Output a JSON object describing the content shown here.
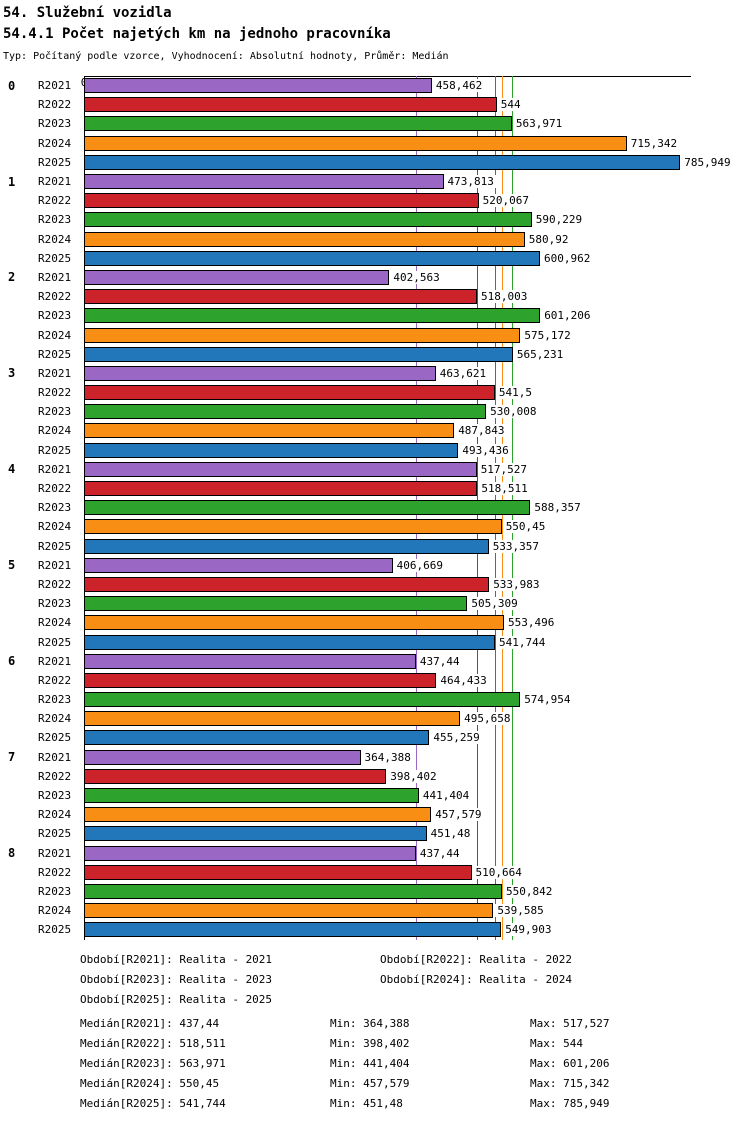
{
  "header": {
    "title": "54. Služební vozidla",
    "subtitle": "54.4.1 Počet najetých km na jednoho pracovníka",
    "meta": "Typ: Počítaný podle vzorce, Vyhodnocení: Absolutní hodnoty, Průměr: Medián"
  },
  "chart_data": {
    "type": "bar",
    "orientation": "horizontal",
    "title": "54.4.1 Počet najetých km na jednoho pracovníka",
    "xlim": [
      0,
      800
    ],
    "axis_origin_label": "0",
    "grid": false,
    "series": [
      {
        "name": "R2021",
        "label": "Realita - 2021",
        "color": "#9a67c5"
      },
      {
        "name": "R2022",
        "label": "Realita - 2022",
        "color": "#cc2229"
      },
      {
        "name": "R2023",
        "label": "Realita - 2023",
        "color": "#2da32d"
      },
      {
        "name": "R2024",
        "label": "Realita - 2024",
        "color": "#f98e15"
      },
      {
        "name": "R2025",
        "label": "Realita - 2025",
        "color": "#2277bb"
      }
    ],
    "groups": [
      {
        "label": "0",
        "values": [
          458.462,
          544,
          563.971,
          715.342,
          785.949
        ],
        "displays": [
          "458,462",
          "544",
          "563,971",
          "715,342",
          "785,949"
        ]
      },
      {
        "label": "1",
        "values": [
          473.813,
          520.067,
          590.229,
          580.92,
          600.962
        ],
        "displays": [
          "473,813",
          "520,067",
          "590,229",
          "580,92",
          "600,962"
        ]
      },
      {
        "label": "2",
        "values": [
          402.563,
          518.003,
          601.206,
          575.172,
          565.231
        ],
        "displays": [
          "402,563",
          "518,003",
          "601,206",
          "575,172",
          "565,231"
        ]
      },
      {
        "label": "3",
        "values": [
          463.621,
          541.5,
          530.008,
          487.843,
          493.436
        ],
        "displays": [
          "463,621",
          "541,5",
          "530,008",
          "487,843",
          "493,436"
        ]
      },
      {
        "label": "4",
        "values": [
          517.527,
          518.511,
          588.357,
          550.45,
          533.357
        ],
        "displays": [
          "517,527",
          "518,511",
          "588,357",
          "550,45",
          "533,357"
        ]
      },
      {
        "label": "5",
        "values": [
          406.669,
          533.983,
          505.309,
          553.496,
          541.744
        ],
        "displays": [
          "406,669",
          "533,983",
          "505,309",
          "553,496",
          "541,744"
        ]
      },
      {
        "label": "6",
        "values": [
          437.44,
          464.433,
          574.954,
          495.658,
          455.259
        ],
        "displays": [
          "437,44",
          "464,433",
          "574,954",
          "495,658",
          "455,259"
        ]
      },
      {
        "label": "7",
        "values": [
          364.388,
          398.402,
          441.404,
          457.579,
          451.48
        ],
        "displays": [
          "364,388",
          "398,402",
          "441,404",
          "457,579",
          "451,48"
        ]
      },
      {
        "label": "8",
        "values": [
          437.44,
          510.664,
          550.842,
          539.585,
          549.903
        ],
        "displays": [
          "437,44",
          "510,664",
          "550,842",
          "539,585",
          "549,903"
        ]
      }
    ],
    "medians": {
      "R2021": 437.44,
      "R2022": 518.511,
      "R2023": 563.971,
      "R2024": 550.45,
      "R2025": 541.744
    }
  },
  "legend": {
    "rows": [
      [
        "Období[R2021]: Realita - 2021",
        "Období[R2022]: Realita - 2022"
      ],
      [
        "Období[R2023]: Realita - 2023",
        "Období[R2024]: Realita - 2024"
      ],
      [
        "Období[R2025]: Realita - 2025",
        ""
      ]
    ]
  },
  "stats": {
    "rows": [
      [
        "Medián[R2021]: 437,44",
        "Min: 364,388",
        "Max: 517,527"
      ],
      [
        "Medián[R2022]: 518,511",
        "Min: 398,402",
        "Max: 544"
      ],
      [
        "Medián[R2023]: 563,971",
        "Min: 441,404",
        "Max: 601,206"
      ],
      [
        "Medián[R2024]: 550,45",
        "Min: 457,579",
        "Max: 715,342"
      ],
      [
        "Medián[R2025]: 541,744",
        "Min: 451,48",
        "Max: 785,949"
      ]
    ]
  }
}
